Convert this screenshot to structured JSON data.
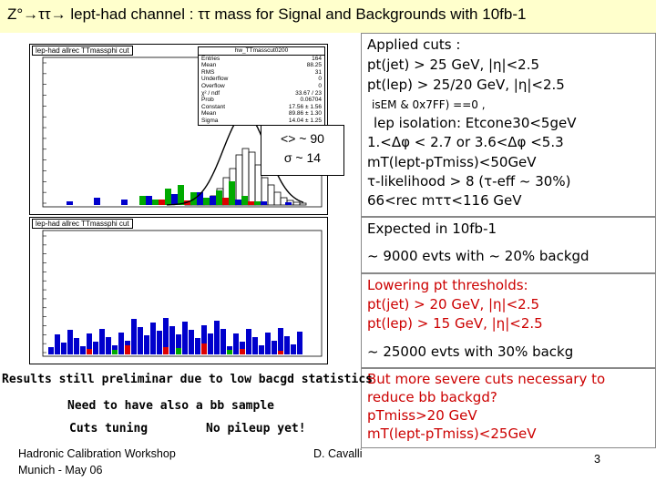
{
  "title": "Z°→ττ→ lept-had channel : ττ mass for Signal and Backgrounds with 10fb-1",
  "plots": {
    "top_label": "lep-had allrec TTmassphi cut",
    "bottom_label": "lep-had allrec TTmassphi cut",
    "stats": {
      "name": "hw_TTmasscut0200",
      "rows": [
        {
          "k": "Entries",
          "v": "164"
        },
        {
          "k": "Mean",
          "v": "88.25"
        },
        {
          "k": "RMS",
          "v": "31"
        },
        {
          "k": "Underflow",
          "v": "0"
        },
        {
          "k": "Overflow",
          "v": "0"
        },
        {
          "k": "χ² / ndf",
          "v": "33.67 / 23"
        },
        {
          "k": "Prob",
          "v": "0.06704"
        },
        {
          "k": "Constant",
          "v": "17.56 ± 1.56"
        },
        {
          "k": "Mean",
          "v": "89.86 ± 1.30"
        },
        {
          "k": "Sigma",
          "v": "14.04 ± 1.25"
        }
      ]
    },
    "callout_mean": "<> ~ 90",
    "callout_sigma": "σ ~ 14",
    "colors": {
      "signal": "#000000",
      "green": "#00aa00",
      "blue": "#0000cc",
      "red": "#dd0000",
      "fit": "#000000"
    }
  },
  "cuts": {
    "heading": "Applied cuts :",
    "l1": "pt(jet)  > 25 GeV, |η|<2.5",
    "l2": "pt(lep) > 25/20 GeV, |η|<2.5",
    "l3": "isEM & 0x7FF) ==0 ,",
    "l4": "lep isolation: Etcone30<5geV",
    "l5": "1.<Δφ < 2.7 or 3.6<Δφ <5.3",
    "l6": "mT(lept-pTmiss)<50GeV",
    "l7": "τ-likelihood > 8 (τ-eff ~ 30%)",
    "l8": "66<rec mττ<116 GeV"
  },
  "expected": {
    "heading": "Expected in 10fb-1",
    "line": "~ 9000 evts with   ~ 20%  backgd"
  },
  "lowering": {
    "heading": "Lowering pt thresholds:",
    "l1": "pt(jet)  > 20 GeV, |η|<2.5",
    "l2": "pt(lep) > 15 GeV, |η|<2.5",
    "result": "~ 25000 evts with 30% backg"
  },
  "severe": {
    "l1": "But more severe cuts necessary to",
    "l2": "reduce bb backgd?",
    "l3": "pTmiss>20 GeV",
    "l4": "mT(lept-pTmiss)<25GeV"
  },
  "preliminary": {
    "l1": "Results still preliminar due to low bacgd statistics",
    "l2": "Need to have also a bb sample",
    "l3a": "Cuts tuning",
    "l3b": "No pileup yet!"
  },
  "footer": {
    "workshop": "Hadronic Calibration Workshop",
    "place": "Munich  -  May 06",
    "author": "D. Cavalli",
    "page": "3"
  }
}
